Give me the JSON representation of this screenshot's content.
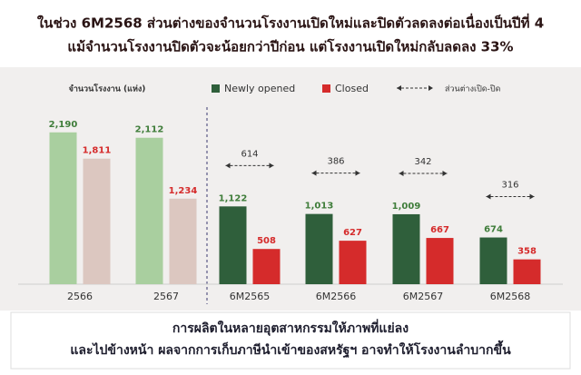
{
  "header": {
    "title": "ในช่วง 6M2568 ส่วนต่างของจำนวนโรงงานเปิดใหม่และปิดตัวลดลงต่อเนื่องเป็นปีที่ 4",
    "subtitle": "แม้จำนวนโรงงานปิดตัวจะน้อยกว่าปีก่อน แต่โรงงานเปิดใหม่กลับลดลง 33%"
  },
  "chart_data": {
    "type": "bar",
    "y_label": "จำนวนโรงงาน (แห่ง)",
    "categories": [
      "2566",
      "2567",
      "6M2565",
      "6M2566",
      "6M2567",
      "6M2568"
    ],
    "series": [
      {
        "name": "Newly opened",
        "color": "#2f5f3b",
        "muted_color": "#a9cf9f",
        "label_color": "#3f7d3a",
        "values": [
          2190,
          2112,
          1122,
          1013,
          1009,
          674
        ],
        "value_labels": [
          "2,190",
          "2,112",
          "1,122",
          "1,013",
          "1,009",
          "674"
        ]
      },
      {
        "name": "Closed",
        "color": "#d52b2b",
        "muted_color": "#dcc7c0",
        "label_color": "#d52b2b",
        "values": [
          1811,
          1234,
          508,
          627,
          667,
          358
        ],
        "value_labels": [
          "1,811",
          "1,234",
          "508",
          "627",
          "667",
          "358"
        ]
      }
    ],
    "difference_name": "ส่วนต่างเปิด-ปิด",
    "differences": [
      null,
      null,
      614,
      386,
      342,
      316
    ]
  },
  "footer": {
    "line1": "การผลิตในหลายอุตสาหกรรมให้ภาพที่แย่ลง",
    "line2": "และไปข้างหน้า ผลจากการเก็บภาษีนำเข้าของสหรัฐฯ อาจทำให้โรงงานลำบากขึ้น"
  }
}
